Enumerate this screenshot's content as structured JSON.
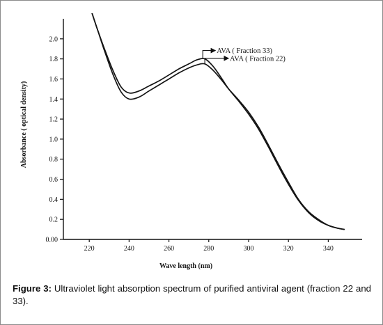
{
  "chart_data": {
    "type": "line",
    "title": "",
    "xlabel": "Wave   length (nm)",
    "ylabel": "Absorbance ( optical density)",
    "xlim": [
      207,
      357
    ],
    "ylim": [
      0,
      2.2
    ],
    "x_ticks": [
      220,
      240,
      260,
      280,
      300,
      320,
      340
    ],
    "x_tick_labels": [
      "220",
      "240",
      "260",
      "280",
      "300",
      "320",
      "340"
    ],
    "y_ticks": [
      0,
      0.2,
      0.4,
      0.6,
      0.8,
      1.0,
      1.2,
      1.4,
      1.6,
      1.8,
      2.0
    ],
    "y_tick_labels": [
      "0.00",
      "0.2",
      "0.4",
      "0.6",
      "0.8",
      "1.0",
      "1.2",
      "1.4",
      "1.6",
      "1.8",
      "2.0"
    ],
    "grid": false,
    "series": [
      {
        "name": "AVA ( Fraction 33)",
        "x": [
          221,
          224,
          228,
          232,
          236,
          240,
          245,
          250,
          255,
          260,
          265,
          270,
          274,
          278,
          282,
          286,
          290,
          295,
          300,
          305,
          310,
          315,
          320,
          325,
          330,
          335,
          340,
          345,
          348
        ],
        "y": [
          2.28,
          2.1,
          1.88,
          1.68,
          1.52,
          1.46,
          1.48,
          1.53,
          1.58,
          1.64,
          1.7,
          1.75,
          1.79,
          1.8,
          1.73,
          1.62,
          1.5,
          1.38,
          1.25,
          1.1,
          0.92,
          0.73,
          0.55,
          0.39,
          0.27,
          0.19,
          0.14,
          0.11,
          0.1
        ]
      },
      {
        "name": "AVA ( Fraction 22)",
        "x": [
          221,
          224,
          228,
          232,
          236,
          240,
          245,
          250,
          255,
          260,
          265,
          270,
          274,
          278,
          282,
          286,
          290,
          295,
          300,
          305,
          310,
          315,
          320,
          325,
          330,
          335,
          340,
          345,
          348
        ],
        "y": [
          2.28,
          2.1,
          1.86,
          1.64,
          1.47,
          1.4,
          1.42,
          1.48,
          1.54,
          1.6,
          1.66,
          1.71,
          1.74,
          1.75,
          1.69,
          1.6,
          1.5,
          1.39,
          1.27,
          1.12,
          0.94,
          0.75,
          0.57,
          0.4,
          0.28,
          0.2,
          0.14,
          0.11,
          0.1
        ]
      }
    ],
    "annotations": [
      {
        "text": "AVA ( Fraction 33)",
        "series": 0,
        "x": 277,
        "y": 1.8
      },
      {
        "text": "AVA ( Fraction 22)",
        "series": 1,
        "x": 278,
        "y": 1.75
      }
    ]
  },
  "caption": {
    "label": "Figure 3:",
    "text": " Ultraviolet light absorption spectrum of purified antiviral agent (fraction 22 and 33)."
  }
}
